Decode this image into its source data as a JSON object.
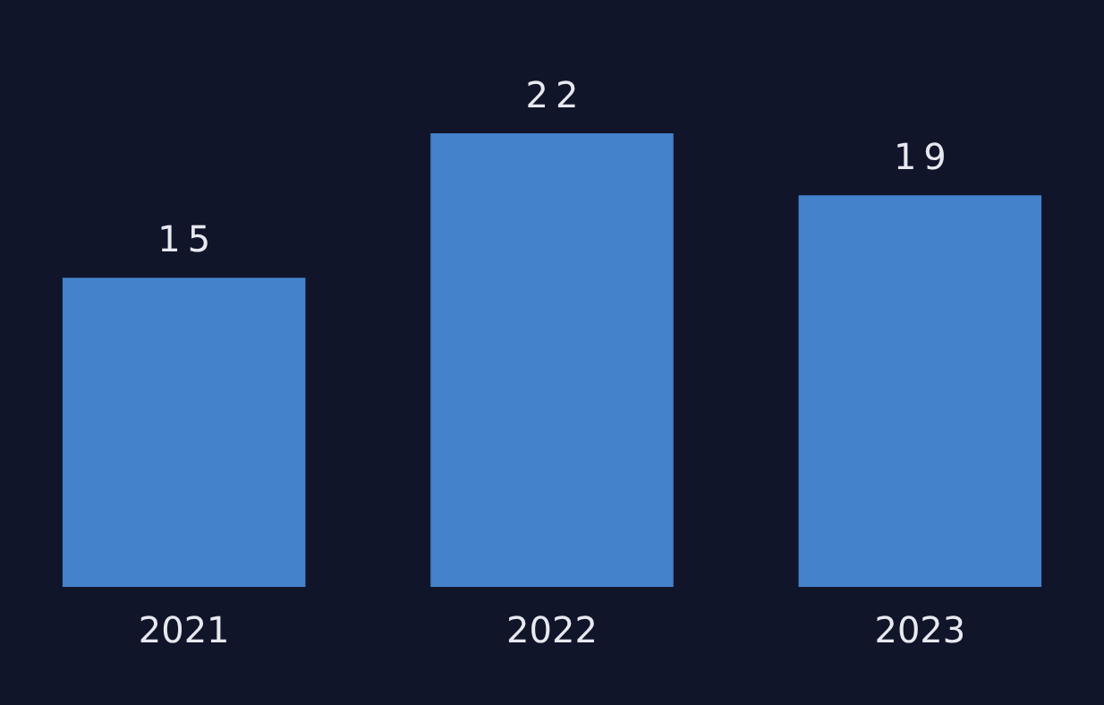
{
  "chart_data": {
    "type": "bar",
    "categories": [
      "2021",
      "2022",
      "2023"
    ],
    "values": [
      15,
      22,
      19
    ],
    "color": "#4582cc",
    "data_labels": true
  }
}
